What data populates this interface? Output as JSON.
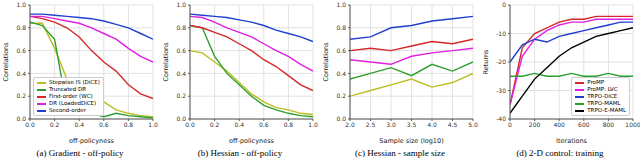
{
  "chart_data": [
    {
      "type": "line",
      "title": "(a) Gradient - off-policy",
      "x_label": "off-policyness",
      "y_label": "Correlations",
      "x": [
        0,
        0.1,
        0.2,
        0.3,
        0.4,
        0.5,
        0.6,
        0.7,
        0.8,
        0.9,
        1.0
      ],
      "xlim": [
        0,
        1
      ],
      "ylim": [
        0,
        1
      ],
      "xticks": [
        {
          "value": 0,
          "label": "0.0"
        },
        {
          "value": 0.2,
          "label": "0.2"
        },
        {
          "value": 0.4,
          "label": "0.4"
        },
        {
          "value": 0.6,
          "label": "0.6"
        },
        {
          "value": 0.8,
          "label": "0.8"
        },
        {
          "value": 1,
          "label": "1.0"
        }
      ],
      "yticks": [
        {
          "value": 0,
          "label": "0.0"
        },
        {
          "value": 0.2,
          "label": "0.2"
        },
        {
          "value": 0.4,
          "label": "0.4"
        },
        {
          "value": 0.6,
          "label": "0.6"
        },
        {
          "value": 0.8,
          "label": "0.8"
        },
        {
          "value": 1,
          "label": "1.0"
        }
      ],
      "grid": true,
      "legend": "lower left",
      "series": [
        {
          "name": "Stepwise IS (DiCE)",
          "color": "#bcbd22",
          "values": [
            0.84,
            0.84,
            0.62,
            0.35,
            0.28,
            0.2,
            0.15,
            0.08,
            0.05,
            0.03,
            0.02
          ]
        },
        {
          "name": "Truncated DR",
          "color": "#2ca02c",
          "values": [
            0.85,
            0.82,
            0.7,
            0.1,
            0.3,
            0.05,
            0.02,
            0.05,
            0.03,
            0.02,
            0.01
          ]
        },
        {
          "name": "First-order (WC)",
          "color": "#d62728",
          "values": [
            0.9,
            0.88,
            0.85,
            0.8,
            0.72,
            0.6,
            0.5,
            0.42,
            0.3,
            0.22,
            0.18
          ]
        },
        {
          "name": "DR (LoadedDiCE)",
          "color": "#e020e0",
          "values": [
            0.9,
            0.9,
            0.88,
            0.86,
            0.84,
            0.8,
            0.75,
            0.7,
            0.62,
            0.55,
            0.5
          ]
        },
        {
          "name": "Second-order",
          "color": "#1f3fd0",
          "values": [
            0.92,
            0.92,
            0.91,
            0.9,
            0.89,
            0.88,
            0.86,
            0.83,
            0.8,
            0.75,
            0.7
          ]
        }
      ]
    },
    {
      "type": "line",
      "title": "(b) Hessian - off-policy",
      "x_label": "off-policyness",
      "y_label": "Correlations",
      "x": [
        0,
        0.1,
        0.2,
        0.3,
        0.4,
        0.5,
        0.6,
        0.7,
        0.8,
        0.9,
        1.0
      ],
      "xlim": [
        0,
        1
      ],
      "ylim": [
        0,
        1
      ],
      "xticks": [
        {
          "value": 0,
          "label": "0.0"
        },
        {
          "value": 0.2,
          "label": "0.2"
        },
        {
          "value": 0.4,
          "label": "0.4"
        },
        {
          "value": 0.6,
          "label": "0.6"
        },
        {
          "value": 0.8,
          "label": "0.8"
        },
        {
          "value": 1,
          "label": "1.0"
        }
      ],
      "yticks": [
        {
          "value": 0,
          "label": "0.0"
        },
        {
          "value": 0.2,
          "label": "0.2"
        },
        {
          "value": 0.4,
          "label": "0.4"
        },
        {
          "value": 0.6,
          "label": "0.6"
        },
        {
          "value": 0.8,
          "label": "0.8"
        },
        {
          "value": 1,
          "label": "1.0"
        }
      ],
      "grid": true,
      "series": [
        {
          "color": "#bcbd22",
          "values": [
            0.6,
            0.58,
            0.5,
            0.42,
            0.32,
            0.22,
            0.15,
            0.1,
            0.08,
            0.05,
            0.04
          ]
        },
        {
          "color": "#2ca02c",
          "values": [
            0.82,
            0.8,
            0.55,
            0.4,
            0.3,
            0.2,
            0.12,
            0.08,
            0.05,
            0.03,
            0.02
          ]
        },
        {
          "color": "#d62728",
          "values": [
            0.82,
            0.8,
            0.76,
            0.72,
            0.66,
            0.6,
            0.52,
            0.46,
            0.38,
            0.3,
            0.25
          ]
        },
        {
          "color": "#e020e0",
          "values": [
            0.9,
            0.89,
            0.85,
            0.8,
            0.76,
            0.72,
            0.66,
            0.6,
            0.55,
            0.48,
            0.42
          ]
        },
        {
          "color": "#1f3fd0",
          "values": [
            0.92,
            0.91,
            0.9,
            0.89,
            0.87,
            0.85,
            0.82,
            0.78,
            0.75,
            0.72,
            0.68
          ]
        }
      ]
    },
    {
      "type": "line",
      "title": "(c) Hessian - sample size",
      "x_label": "Sample size (log10)",
      "y_label": "Correlations",
      "x": [
        2,
        2.5,
        3,
        3.5,
        4,
        4.5,
        5
      ],
      "xlim": [
        2,
        5
      ],
      "ylim": [
        0,
        1
      ],
      "xticks": [
        {
          "value": 2,
          "label": "2.0"
        },
        {
          "value": 2.5,
          "label": "2.5"
        },
        {
          "value": 3,
          "label": "3.0"
        },
        {
          "value": 3.5,
          "label": "3.5"
        },
        {
          "value": 4,
          "label": "4.0"
        },
        {
          "value": 4.5,
          "label": "4.5"
        },
        {
          "value": 5,
          "label": "5.0"
        }
      ],
      "yticks": [
        {
          "value": 0,
          "label": "0.0"
        },
        {
          "value": 0.2,
          "label": "0.2"
        },
        {
          "value": 0.4,
          "label": "0.4"
        },
        {
          "value": 0.6,
          "label": "0.6"
        },
        {
          "value": 0.8,
          "label": "0.8"
        },
        {
          "value": 1,
          "label": "1.0"
        }
      ],
      "grid": true,
      "series": [
        {
          "color": "#bcbd22",
          "values": [
            0.2,
            0.25,
            0.3,
            0.35,
            0.28,
            0.32,
            0.4
          ]
        },
        {
          "color": "#2ca02c",
          "values": [
            0.35,
            0.4,
            0.45,
            0.38,
            0.48,
            0.42,
            0.5
          ]
        },
        {
          "color": "#d62728",
          "values": [
            0.6,
            0.62,
            0.6,
            0.64,
            0.68,
            0.66,
            0.7
          ]
        },
        {
          "color": "#e020e0",
          "values": [
            0.52,
            0.5,
            0.48,
            0.55,
            0.58,
            0.6,
            0.62
          ]
        },
        {
          "color": "#1f3fd0",
          "values": [
            0.7,
            0.72,
            0.8,
            0.82,
            0.86,
            0.88,
            0.9
          ]
        }
      ]
    },
    {
      "type": "line",
      "title": "(d) 2-D control: training",
      "x_label": "Iterations",
      "y_label": "Returns",
      "x": [
        0,
        100,
        200,
        300,
        400,
        500,
        600,
        700,
        800,
        900,
        1000
      ],
      "xlim": [
        0,
        1000
      ],
      "ylim": [
        -40,
        0
      ],
      "xticks": [
        0,
        200,
        400,
        600,
        800,
        1000
      ],
      "yticks": [
        -40,
        -30,
        -20,
        -10,
        0
      ],
      "grid": true,
      "legend": "lower right",
      "series": [
        {
          "name": "ProMP",
          "color": "#d62728",
          "values": [
            -35,
            -15,
            -10,
            -8,
            -6,
            -5,
            -5,
            -4,
            -4,
            -4,
            -4
          ]
        },
        {
          "name": "ProMP: LVC",
          "color": "#e020e0",
          "values": [
            -35,
            -18,
            -12,
            -9,
            -7,
            -6,
            -6,
            -5,
            -5,
            -5,
            -5
          ]
        },
        {
          "name": "TRPO-DiCE",
          "color": "#1f3fd0",
          "values": [
            -20,
            -14,
            -12,
            -13,
            -11,
            -10,
            -9,
            -8,
            -7,
            -6,
            -6
          ]
        },
        {
          "name": "TRPO-MAML",
          "color": "#2ca02c",
          "values": [
            -25,
            -25,
            -24,
            -25,
            -25,
            -24,
            -25,
            -25,
            -24,
            -25,
            -25
          ]
        },
        {
          "name": "TRPO-E-MAML",
          "color": "#000000",
          "values": [
            -38,
            -32,
            -26,
            -22,
            -18,
            -15,
            -13,
            -11,
            -10,
            -9,
            -8
          ]
        }
      ]
    }
  ]
}
